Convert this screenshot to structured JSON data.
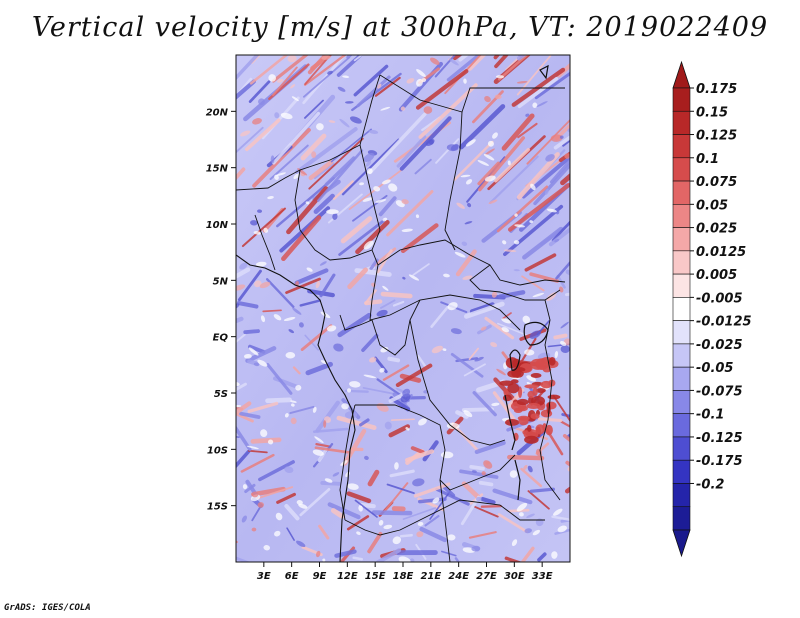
{
  "title": "Vertical velocity [m/s] at 300hPa, VT: 2019022409",
  "credit": "GrADS: IGES/COLA",
  "map": {
    "lon_range": [
      0,
      36
    ],
    "lat_range": [
      -20,
      25
    ],
    "lat_ticks": [
      {
        "lat": 20,
        "label": "20N"
      },
      {
        "lat": 15,
        "label": "15N"
      },
      {
        "lat": 10,
        "label": "10N"
      },
      {
        "lat": 5,
        "label": "5N"
      },
      {
        "lat": 0,
        "label": "EQ"
      },
      {
        "lat": -5,
        "label": "5S"
      },
      {
        "lat": -10,
        "label": "10S"
      },
      {
        "lat": -15,
        "label": "15S"
      }
    ],
    "lon_ticks": [
      {
        "lon": 3,
        "label": "3E"
      },
      {
        "lon": 6,
        "label": "6E"
      },
      {
        "lon": 9,
        "label": "9E"
      },
      {
        "lon": 12,
        "label": "12E"
      },
      {
        "lon": 15,
        "label": "15E"
      },
      {
        "lon": 18,
        "label": "18E"
      },
      {
        "lon": 21,
        "label": "21E"
      },
      {
        "lon": 24,
        "label": "24E"
      },
      {
        "lon": 27,
        "label": "27E"
      },
      {
        "lon": 30,
        "label": "30E"
      },
      {
        "lon": 33,
        "label": "33E"
      }
    ]
  },
  "colorbar": {
    "levels": [
      {
        "label": "0.175",
        "color": "#a81e1e"
      },
      {
        "label": "0.15",
        "color": "#b82828"
      },
      {
        "label": "0.125",
        "color": "#c83838"
      },
      {
        "label": "0.1",
        "color": "#d64c4c"
      },
      {
        "label": "0.075",
        "color": "#e26666"
      },
      {
        "label": "0.05",
        "color": "#ec8686"
      },
      {
        "label": "0.025",
        "color": "#f4a8a8"
      },
      {
        "label": "0.0125",
        "color": "#f9c8c8"
      },
      {
        "label": "0.005",
        "color": "#fce4e4"
      },
      {
        "label": "-0.005",
        "color": "#ffffff"
      },
      {
        "label": "-0.0125",
        "color": "#e2e2fb"
      },
      {
        "label": "-0.025",
        "color": "#c6c6f6"
      },
      {
        "label": "-0.05",
        "color": "#a8a8f0"
      },
      {
        "label": "-0.075",
        "color": "#8888e8"
      },
      {
        "label": "-0.1",
        "color": "#6a6ade"
      },
      {
        "label": "-0.125",
        "color": "#4e4ed2"
      },
      {
        "label": "-0.175",
        "color": "#3434c2"
      },
      {
        "label": "-0.2",
        "color": "#2424aa"
      },
      {
        "label": "",
        "color": "#1c1c96"
      }
    ],
    "top_arrow_color": "#a01a1a",
    "bottom_arrow_color": "#1a1a8c"
  }
}
